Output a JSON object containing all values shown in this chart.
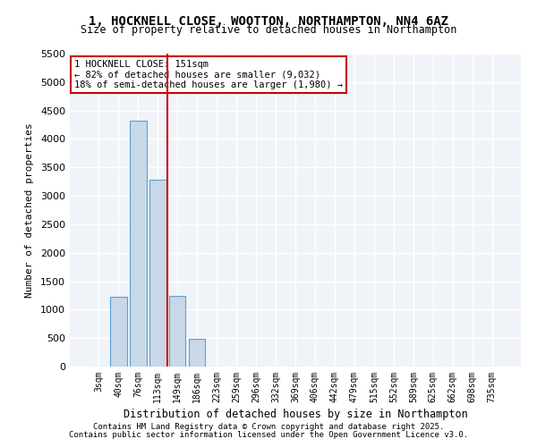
{
  "title_line1": "1, HOCKNELL CLOSE, WOOTTON, NORTHAMPTON, NN4 6AZ",
  "title_line2": "Size of property relative to detached houses in Northampton",
  "xlabel": "Distribution of detached houses by size in Northampton",
  "ylabel": "Number of detached properties",
  "categories": [
    "3sqm",
    "40sqm",
    "76sqm",
    "113sqm",
    "149sqm",
    "186sqm",
    "223sqm",
    "259sqm",
    "296sqm",
    "332sqm",
    "369sqm",
    "406sqm",
    "442sqm",
    "479sqm",
    "515sqm",
    "552sqm",
    "589sqm",
    "625sqm",
    "662sqm",
    "698sqm",
    "735sqm"
  ],
  "values": [
    0,
    1230,
    4320,
    3280,
    1240,
    490,
    0,
    0,
    0,
    0,
    0,
    0,
    0,
    0,
    0,
    0,
    0,
    0,
    0,
    0,
    0
  ],
  "bar_color": "#c8d8e8",
  "bar_edgecolor": "#5a9fd4",
  "annotation_box_text": "1 HOCKNELL CLOSE: 151sqm\n← 82% of detached houses are smaller (9,032)\n18% of semi-detached houses are larger (1,980) →",
  "annotation_box_color": "#cc0000",
  "vline_x_index": 4,
  "vline_color": "#cc0000",
  "ylim": [
    0,
    5500
  ],
  "yticks": [
    0,
    500,
    1000,
    1500,
    2000,
    2500,
    3000,
    3500,
    4000,
    4500,
    5000,
    5500
  ],
  "background_color": "#f0f4f8",
  "grid_color": "#ffffff",
  "footer_line1": "Contains HM Land Registry data © Crown copyright and database right 2025.",
  "footer_line2": "Contains public sector information licensed under the Open Government Licence v3.0."
}
